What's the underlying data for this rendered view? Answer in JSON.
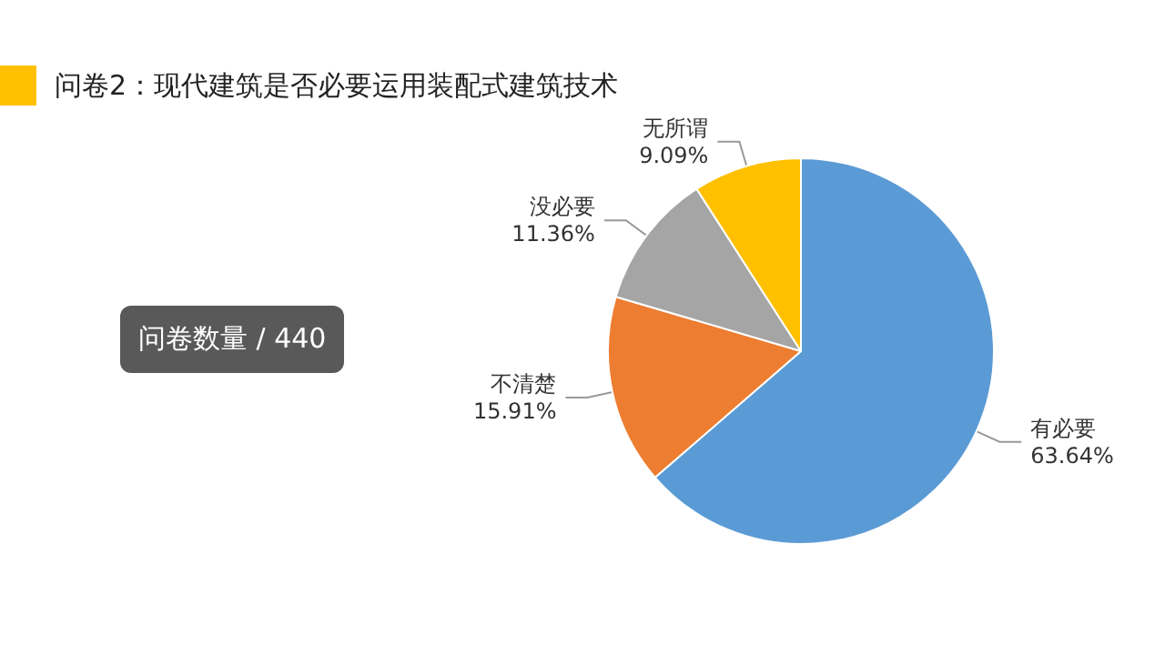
{
  "chart_data": {
    "type": "pie",
    "title": "问卷2：现代建筑是否必要运用装配式建筑技术",
    "categories": [
      "有必要",
      "不清楚",
      "没必要",
      "无所谓"
    ],
    "values": [
      63.64,
      15.91,
      11.36,
      9.09
    ],
    "colors": [
      "#5b9bd5",
      "#ed7d31",
      "#a5a5a5",
      "#ffc000"
    ],
    "value_labels": [
      "63.64%",
      "15.91%",
      "11.36%",
      "9.09%"
    ],
    "annotations": [
      "问卷数量 / 440"
    ]
  }
}
